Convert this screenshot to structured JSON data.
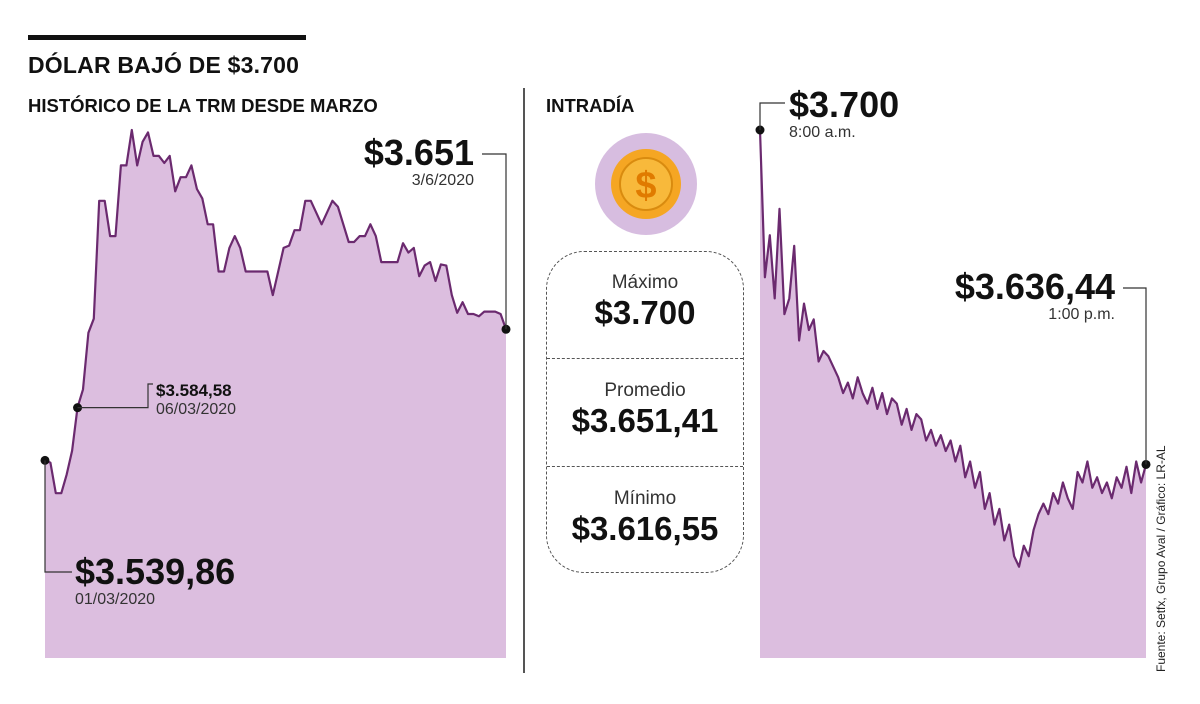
{
  "header": {
    "title": "DÓLAR BAJÓ DE $3.700",
    "left_subtitle": "HISTÓRICO DE LA TRM DESDE MARZO",
    "right_subtitle": "INTRADÍA"
  },
  "stats": {
    "max_label": "Máximo",
    "max_value": "$3.700",
    "avg_label": "Promedio",
    "avg_value": "$3.651,41",
    "min_label": "Mínimo",
    "min_value": "$3.616,55"
  },
  "coin_icon": "$",
  "source": "Fuente: Setfx, Grupo Aval / Gráfico: LR-AL",
  "colors": {
    "area": "#dcbedf",
    "line": "#6b2a6f",
    "coin_gold": "#f5a623",
    "coin_bg": "#d7bde0"
  },
  "annotations": {
    "hist_start_value": "$3.539,86",
    "hist_start_date": "01/03/2020",
    "hist_mid_value": "$3.584,58",
    "hist_mid_date": "06/03/2020",
    "hist_end_value": "$3.651",
    "hist_end_date": "3/6/2020",
    "intra_open_value": "$3.700",
    "intra_open_time": "8:00 a.m.",
    "intra_close_value": "$3.636,44",
    "intra_close_time": "1:00 p.m."
  },
  "chart_data": [
    {
      "type": "area",
      "series": [
        {
          "values": [
            3539.86,
            3538,
            3512,
            3512,
            3528,
            3548,
            3584.58,
            3600,
            3648,
            3660,
            3760,
            3760,
            3730,
            3730,
            3790,
            3790,
            3820,
            3790,
            3810,
            3818,
            3798,
            3798,
            3792,
            3798,
            3768,
            3780,
            3780,
            3790,
            3770,
            3762,
            3740,
            3740,
            3700,
            3700,
            3720,
            3730,
            3720,
            3700,
            3700,
            3700,
            3700,
            3700,
            3680,
            3700,
            3720,
            3722,
            3735,
            3735,
            3760,
            3760,
            3750,
            3740,
            3750,
            3760,
            3755,
            3740,
            3725,
            3725,
            3730,
            3730,
            3740,
            3730,
            3708,
            3708,
            3708,
            3708,
            3724,
            3716,
            3720,
            3696,
            3705,
            3708,
            3692,
            3706,
            3705,
            3680,
            3665,
            3674,
            3664,
            3664,
            3662,
            3666,
            3666,
            3666,
            3664,
            3651
          ]
        }
      ]
    },
    {
      "type": "area",
      "series": [
        {
          "values": [
            3700,
            3672,
            3680,
            3668,
            3685,
            3665,
            3668,
            3678,
            3660,
            3667,
            3662,
            3664,
            3656,
            3658,
            3657,
            3655,
            3653,
            3650,
            3652,
            3649,
            3653,
            3650,
            3648,
            3651,
            3647,
            3650,
            3646,
            3649,
            3648,
            3644,
            3647,
            3643,
            3646,
            3645,
            3641,
            3643,
            3640,
            3642,
            3639,
            3641,
            3637,
            3640,
            3634,
            3637,
            3632,
            3635,
            3628,
            3631,
            3625,
            3628,
            3622,
            3625,
            3619,
            3617,
            3621,
            3619,
            3624,
            3627,
            3629,
            3627,
            3631,
            3629,
            3633,
            3630,
            3628,
            3635,
            3633,
            3637,
            3632,
            3634,
            3631,
            3633,
            3630,
            3634,
            3632,
            3636,
            3631,
            3637,
            3633,
            3636.44
          ]
        }
      ]
    }
  ]
}
